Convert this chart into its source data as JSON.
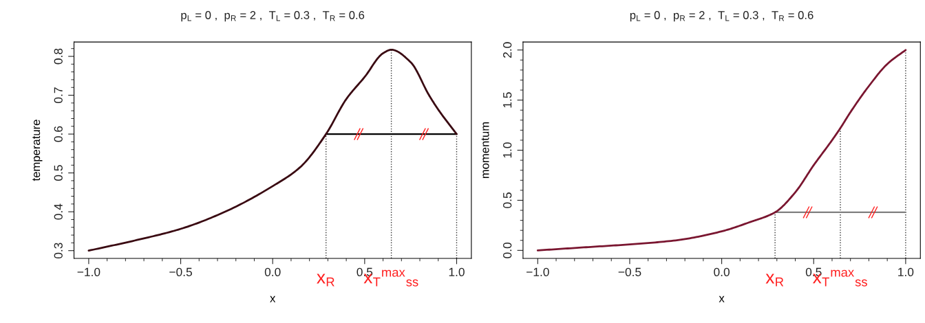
{
  "chart_data": [
    {
      "type": "line",
      "title": "p$_{L}$ = 0 ,  p$_{R}$ = 2 ,  T$_{L}$ = 0.3 ,  T$_{R}$ = 0.6",
      "xlabel": "x",
      "ylabel": "temperature",
      "series": [
        {
          "color": "#3a0a12",
          "x": [
            -1.0,
            -0.75,
            -0.5,
            -0.25,
            0.0,
            0.15,
            0.29,
            0.4,
            0.5,
            0.6,
            0.645,
            0.75,
            0.85,
            0.9,
            1.0
          ],
          "values": [
            0.3,
            0.326,
            0.356,
            0.402,
            0.466,
            0.515,
            0.6,
            0.69,
            0.747,
            0.808,
            0.817,
            0.785,
            0.7,
            0.663,
            0.6
          ]
        },
        {
          "color": "#000000",
          "x": [
            0.29,
            1.0
          ],
          "values": [
            0.6,
            0.6
          ]
        }
      ],
      "ref_lines": [
        {
          "axis": "x",
          "value": 0.29,
          "label": "x$_{R}$",
          "color": "#333333",
          "line_style": "dotted"
        },
        {
          "axis": "x",
          "value": 0.645,
          "label": "x$_{T}$$^{max}$$_{ss}$",
          "color": "#333333",
          "line_style": "dotted"
        },
        {
          "axis": "x",
          "value": 1.0,
          "label": null,
          "color": "#333333",
          "line_style": "dotted"
        }
      ],
      "xlim": [
        -1.08,
        1.08
      ],
      "ylim": [
        0.28,
        0.837
      ],
      "xticks": [
        {
          "value": -1.0,
          "label": "−1.0"
        },
        {
          "value": -0.9,
          "label": null
        },
        {
          "value": -0.8,
          "label": null
        },
        {
          "value": -0.7,
          "label": null
        },
        {
          "value": -0.6,
          "label": null
        },
        {
          "value": -0.5,
          "label": "−0.5"
        },
        {
          "value": -0.4,
          "label": null
        },
        {
          "value": -0.3,
          "label": null
        },
        {
          "value": -0.2,
          "label": null
        },
        {
          "value": -0.1,
          "label": null
        },
        {
          "value": 0.0,
          "label": "0.0"
        },
        {
          "value": 0.1,
          "label": null
        },
        {
          "value": 0.2,
          "label": null
        },
        {
          "value": 0.3,
          "label": null
        },
        {
          "value": 0.4,
          "label": null
        },
        0.5,
        {
          "value": 0.6,
          "label": null
        },
        {
          "value": 0.7,
          "label": null
        },
        {
          "value": 0.8,
          "label": null
        },
        {
          "value": 0.9,
          "label": null
        },
        {
          "value": 1.0,
          "label": "1.0"
        }
      ],
      "yticks": [
        0.3,
        {
          "value": 0.32,
          "label": null
        },
        {
          "value": 0.34,
          "label": null
        },
        {
          "value": 0.36,
          "label": null
        },
        {
          "value": 0.38,
          "label": null
        },
        0.4,
        {
          "value": 0.42,
          "label": null
        },
        {
          "value": 0.44,
          "label": null
        },
        {
          "value": 0.46,
          "label": null
        },
        {
          "value": 0.48,
          "label": null
        },
        0.5,
        {
          "value": 0.52,
          "label": null
        },
        {
          "value": 0.54,
          "label": null
        },
        {
          "value": 0.56,
          "label": null
        },
        {
          "value": 0.58,
          "label": null
        },
        0.6,
        {
          "value": 0.62,
          "label": null
        },
        {
          "value": 0.64,
          "label": null
        },
        {
          "value": 0.66,
          "label": null
        },
        {
          "value": 0.68,
          "label": null
        },
        0.7,
        {
          "value": 0.72,
          "label": null
        },
        {
          "value": 0.74,
          "label": null
        },
        {
          "value": 0.76,
          "label": null
        },
        {
          "value": 0.78,
          "label": null
        },
        0.8,
        {
          "value": 0.82,
          "label": null
        }
      ],
      "grid": false,
      "legend": false
    },
    {
      "type": "line",
      "title": "p$_{L}$ = 0 ,  p$_{R}$ = 2 ,  T$_{L}$ = 0.3 ,  T$_{R}$ = 0.6",
      "xlabel": "x",
      "ylabel": "momentum",
      "series": [
        {
          "color": "#7a1630",
          "x": [
            -1.0,
            -0.75,
            -0.5,
            -0.25,
            0.0,
            0.15,
            0.29,
            0.4,
            0.5,
            0.6,
            0.645,
            0.7,
            0.8,
            0.9,
            1.0
          ],
          "values": [
            0.0,
            0.03,
            0.06,
            0.1,
            0.19,
            0.28,
            0.38,
            0.58,
            0.85,
            1.1,
            1.22,
            1.38,
            1.64,
            1.86,
            2.0
          ]
        },
        {
          "color": "#808080",
          "x": [
            0.29,
            1.0
          ],
          "values": [
            0.38,
            0.38
          ]
        }
      ],
      "ref_lines": [
        {
          "axis": "x",
          "value": 0.29,
          "label": "x$_{R}$",
          "color": "#333333",
          "line_style": "dotted"
        },
        {
          "axis": "x",
          "value": 0.645,
          "label": "x$_{T}$$^{max}$$_{ss}$",
          "color": "#333333",
          "line_style": "dotted"
        },
        {
          "axis": "x",
          "value": 1.0,
          "label": null,
          "color": "#333333",
          "line_style": "dotted"
        }
      ],
      "xlim": [
        -1.08,
        1.08
      ],
      "ylim": [
        -0.08,
        2.08
      ],
      "xticks": [
        {
          "value": -1.0,
          "label": "−1.0"
        },
        {
          "value": -0.9,
          "label": null
        },
        {
          "value": -0.8,
          "label": null
        },
        {
          "value": -0.7,
          "label": null
        },
        {
          "value": -0.6,
          "label": null
        },
        {
          "value": -0.5,
          "label": "−0.5"
        },
        {
          "value": -0.4,
          "label": null
        },
        {
          "value": -0.3,
          "label": null
        },
        {
          "value": -0.2,
          "label": null
        },
        {
          "value": -0.1,
          "label": null
        },
        {
          "value": 0.0,
          "label": "0.0"
        },
        {
          "value": 0.1,
          "label": null
        },
        {
          "value": 0.2,
          "label": null
        },
        {
          "value": 0.3,
          "label": null
        },
        {
          "value": 0.4,
          "label": null
        },
        0.5,
        {
          "value": 0.6,
          "label": null
        },
        {
          "value": 0.7,
          "label": null
        },
        {
          "value": 0.8,
          "label": null
        },
        {
          "value": 0.9,
          "label": null
        },
        {
          "value": 1.0,
          "label": "1.0"
        }
      ],
      "yticks": [
        {
          "value": 0.0,
          "label": "0.0"
        },
        {
          "value": 0.1,
          "label": null
        },
        {
          "value": 0.2,
          "label": null
        },
        {
          "value": 0.3,
          "label": null
        },
        {
          "value": 0.4,
          "label": null
        },
        0.5,
        {
          "value": 0.6,
          "label": null
        },
        {
          "value": 0.7,
          "label": null
        },
        {
          "value": 0.8,
          "label": null
        },
        {
          "value": 0.9,
          "label": null
        },
        {
          "value": 1.0,
          "label": "1.0"
        },
        {
          "value": 1.1,
          "label": null
        },
        {
          "value": 1.2,
          "label": null
        },
        {
          "value": 1.3,
          "label": null
        },
        {
          "value": 1.4,
          "label": null
        },
        1.5,
        {
          "value": 1.6,
          "label": null
        },
        {
          "value": 1.7,
          "label": null
        },
        {
          "value": 1.8,
          "label": null
        },
        {
          "value": 1.9,
          "label": null
        },
        {
          "value": 2.0,
          "label": "2.0"
        }
      ],
      "grid": false,
      "legend": false
    }
  ]
}
